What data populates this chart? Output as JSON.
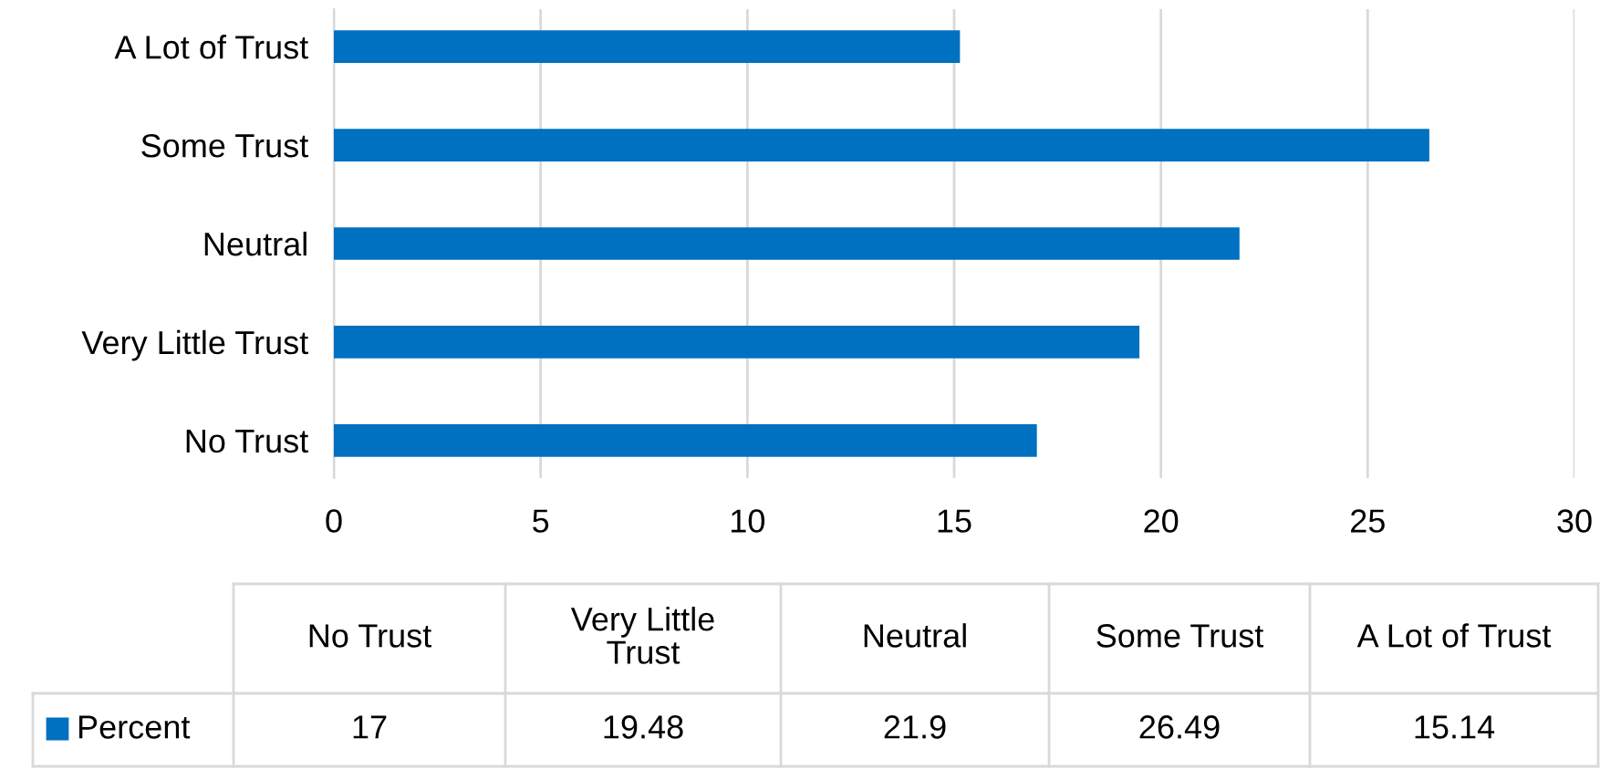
{
  "chart_data": {
    "type": "bar",
    "orientation": "horizontal",
    "categories": [
      "A Lot of Trust",
      "Some Trust",
      "Neutral",
      "Very Little Trust",
      "No Trust"
    ],
    "series": [
      {
        "name": "Percent",
        "color": "#0070c0",
        "values": [
          15.14,
          26.49,
          21.9,
          19.48,
          17
        ]
      }
    ],
    "xlim": [
      0,
      30
    ],
    "xticks": [
      0,
      5,
      10,
      15,
      20,
      25,
      30
    ],
    "grid": "x",
    "value_labels": [
      "15.14",
      "26.49",
      "21.9",
      "19.48",
      "17"
    ]
  }
}
